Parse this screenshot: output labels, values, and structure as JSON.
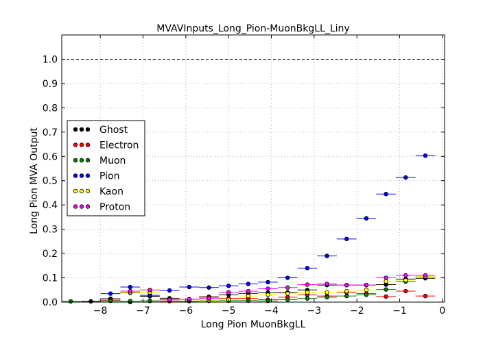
{
  "chart_data": {
    "type": "scatter",
    "title": "MVAVInputs_Long_Pion-MuonBkgLL_Liny",
    "xlabel": "Long Pion MuonBkgLL",
    "ylabel": "Long Pion MVA Output",
    "xlim": [
      -8.9,
      0.05
    ],
    "ylim": [
      0.0,
      1.1
    ],
    "x_ticks": [
      -8,
      -7,
      -6,
      -5,
      -4,
      -3,
      -2,
      -1,
      0
    ],
    "x_tick_labels": [
      "−8",
      "−7",
      "−6",
      "−5",
      "−4",
      "−3",
      "−2",
      "−1",
      "0"
    ],
    "y_ticks": [
      0.0,
      0.1,
      0.2,
      0.3,
      0.4,
      0.5,
      0.6,
      0.7,
      0.8,
      0.9,
      1.0
    ],
    "y_tick_labels": [
      "0.0",
      "0.1",
      "0.2",
      "0.3",
      "0.4",
      "0.5",
      "0.6",
      "0.7",
      "0.8",
      "0.9",
      "1.0"
    ],
    "grid": true,
    "reference_line_y": 1.0,
    "legend_position": "center-left",
    "x": [
      -8.69,
      -8.22,
      -7.76,
      -7.3,
      -6.84,
      -6.38,
      -5.92,
      -5.46,
      -5.0,
      -4.54,
      -4.08,
      -3.62,
      -3.16,
      -2.7,
      -2.24,
      -1.78,
      -1.32,
      -0.86,
      -0.4
    ],
    "x_half_width": 0.23,
    "series": [
      {
        "name": "Ghost",
        "color": "#000000",
        "values": [
          null,
          0.003,
          0.014,
          0.038,
          0.024,
          0.016,
          0.012,
          0.022,
          0.03,
          0.036,
          0.038,
          0.04,
          0.05,
          0.07,
          0.07,
          0.07,
          0.072,
          0.095,
          0.098
        ]
      },
      {
        "name": "Electron",
        "color": "#ff0000",
        "values": [
          null,
          null,
          0.008,
          0.0,
          0.005,
          0.005,
          0.004,
          0.02,
          0.015,
          0.015,
          0.01,
          0.02,
          0.03,
          0.025,
          0.04,
          0.035,
          0.023,
          0.045,
          0.025
        ]
      },
      {
        "name": "Muon",
        "color": "#008000",
        "values": [
          0.003,
          null,
          0.005,
          0.004,
          0.005,
          0.004,
          0.004,
          0.005,
          0.006,
          0.006,
          0.005,
          0.01,
          0.015,
          0.02,
          0.025,
          0.03,
          0.052,
          0.085,
          0.105
        ]
      },
      {
        "name": "Pion",
        "color": "#0000ff",
        "values": [
          null,
          null,
          0.035,
          0.062,
          0.028,
          0.048,
          0.062,
          0.06,
          0.067,
          0.075,
          0.082,
          0.1,
          0.14,
          0.19,
          0.26,
          0.345,
          0.445,
          0.513,
          0.603
        ]
      },
      {
        "name": "Kaon",
        "color": "#ffff00",
        "values": [
          null,
          null,
          null,
          0.04,
          0.04,
          0.012,
          0.01,
          0.008,
          0.01,
          0.025,
          0.03,
          0.035,
          0.04,
          0.04,
          0.045,
          0.05,
          0.085,
          0.09,
          0.105
        ]
      },
      {
        "name": "Proton",
        "color": "#ff00ff",
        "values": [
          null,
          null,
          null,
          0.045,
          0.05,
          0.01,
          0.012,
          0.015,
          0.04,
          0.045,
          0.055,
          0.06,
          0.072,
          0.075,
          0.07,
          0.07,
          0.1,
          0.11,
          0.11
        ]
      }
    ]
  }
}
